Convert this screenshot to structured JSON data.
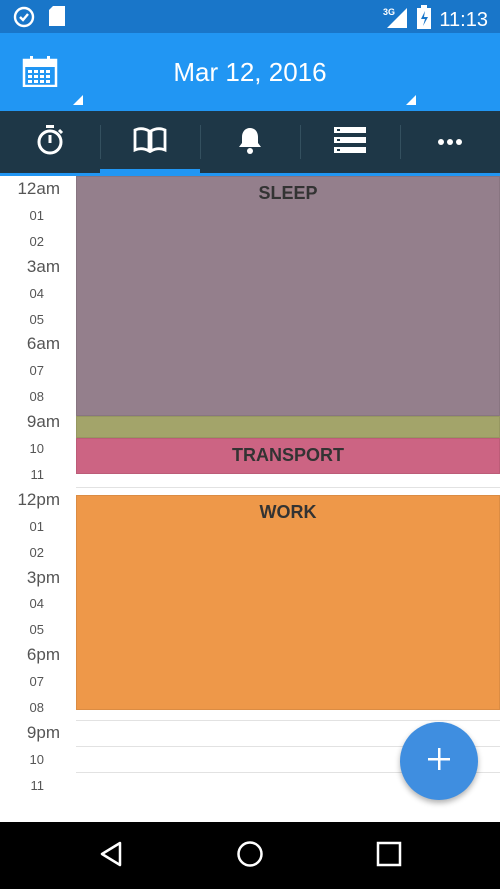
{
  "status_bar": {
    "time": "11:13",
    "network": "3G",
    "icons": [
      "alarm-clock-icon",
      "sd-card-icon",
      "signal-icon",
      "battery-charging-icon"
    ]
  },
  "header": {
    "date_title": "Mar 12, 2016",
    "calendar_icon": "calendar-icon"
  },
  "tabs": [
    {
      "name": "timer",
      "icon": "stopwatch-icon",
      "active": false
    },
    {
      "name": "journal",
      "icon": "book-icon",
      "active": true
    },
    {
      "name": "reminders",
      "icon": "bell-icon",
      "active": false
    },
    {
      "name": "list",
      "icon": "list-icon",
      "active": false
    },
    {
      "name": "more",
      "icon": "more-icon",
      "active": false
    }
  ],
  "timeline": {
    "hours": [
      "12am",
      "01",
      "02",
      "3am",
      "04",
      "05",
      "6am",
      "07",
      "08",
      "9am",
      "10",
      "11",
      "12pm",
      "01",
      "02",
      "3pm",
      "04",
      "05",
      "6pm",
      "07",
      "08",
      "9pm",
      "10",
      "11"
    ],
    "blocks": [
      {
        "label": "SLEEP",
        "start_hour": 0,
        "end_hour": 9.25,
        "color": "#947f8c"
      },
      {
        "label": "",
        "start_hour": 9.25,
        "end_hour": 10.1,
        "color": "#a3a46a"
      },
      {
        "label": "TRANSPORT",
        "start_hour": 10.1,
        "end_hour": 11.5,
        "color": "#cc6483"
      },
      {
        "label": "WORK",
        "start_hour": 12.3,
        "end_hour": 20.6,
        "color": "#ee9849"
      }
    ]
  },
  "fab": {
    "icon": "plus-icon"
  },
  "nav": {
    "icons": [
      "back-icon",
      "home-icon",
      "recents-icon"
    ]
  }
}
